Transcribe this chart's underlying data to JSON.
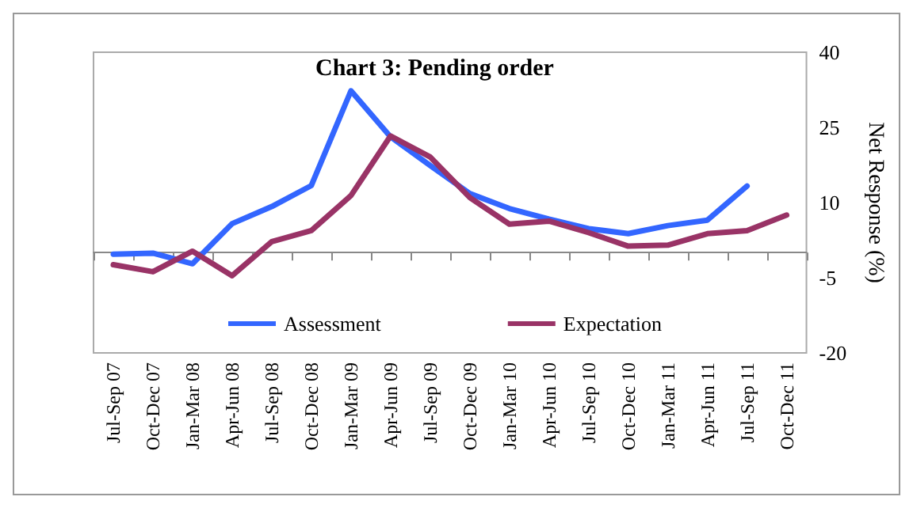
{
  "chart_data": {
    "type": "line",
    "title": "Chart 3: Pending order",
    "ylabel": "Net Response (%)",
    "categories": [
      "Jul-Sep 07",
      "Oct-Dec 07",
      "Jan-Mar 08",
      "Apr-Jun 08",
      "Jul-Sep 08",
      "Oct-Dec 08",
      "Jan-Mar 09",
      "Apr-Jun 09",
      "Jul-Sep 09",
      "Oct-Dec 09",
      "Jan-Mar 10",
      "Apr-Jun 10",
      "Jul-Sep 10",
      "Oct-Dec 10",
      "Jan-Mar 11",
      "Apr-Jun 11",
      "Jul-Sep 11",
      "Oct-Dec 11"
    ],
    "series": [
      {
        "name": "Assessment",
        "color": "#3366ff",
        "values": [
          -0.3,
          -0.1,
          -2.2,
          5.8,
          9.2,
          13.4,
          32.3,
          23.1,
          17.4,
          11.8,
          8.8,
          6.7,
          4.8,
          3.8,
          5.4,
          6.5,
          13.3,
          null
        ]
      },
      {
        "name": "Expectation",
        "color": "#993366",
        "values": [
          -2.4,
          -3.8,
          0.3,
          -4.6,
          2.2,
          4.4,
          11.4,
          23.3,
          19.1,
          11.0,
          5.7,
          6.3,
          4.0,
          1.3,
          1.5,
          3.8,
          4.4,
          7.5
        ]
      }
    ],
    "ylim": [
      -20,
      40
    ],
    "yticks": [
      -20,
      -5,
      10,
      25,
      40
    ],
    "grid": false,
    "legend": "bottom",
    "marker": "none",
    "line_style": "solid"
  }
}
